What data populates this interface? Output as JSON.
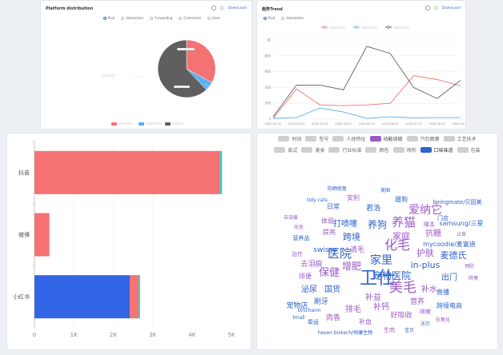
{
  "pie_panel": {
    "title": "Platform distribution",
    "download_label": "DownLoad",
    "radio_options": [
      {
        "label": "Post",
        "selected": true
      },
      {
        "label": "Interaction",
        "selected": false
      },
      {
        "label": "Forwarding",
        "selected": false
      },
      {
        "label": "Comments",
        "selected": false
      },
      {
        "label": "Likes",
        "selected": false
      }
    ],
    "colors": {
      "red": "#f47272",
      "blue": "#5ab0f0",
      "gray": "#5f5f5f"
    }
  },
  "line_panel": {
    "title": "趋势Trend",
    "download_label": "DownLoad",
    "radio_options": [
      {
        "label": "Post",
        "selected": true
      },
      {
        "label": "Interaction",
        "selected": false
      }
    ]
  },
  "chart_data": [
    {
      "type": "pie",
      "values": [
        33,
        5,
        62
      ],
      "colors": [
        "#f47272",
        "#5ab0f0",
        "#5f5f5f"
      ]
    },
    {
      "type": "line",
      "x": [
        "2020-01-01",
        "2020-02-01",
        "2020-03-01",
        "2020-04-01",
        "2020-05-01",
        "2020-06-01",
        "2020-07-01",
        "2020-08-01",
        "2020-09-01"
      ],
      "y_ticks": [
        "0",
        "200",
        "400",
        "600",
        "800",
        "1K"
      ],
      "ylim": [
        0,
        1000
      ],
      "grid": true,
      "series": [
        {
          "color": "#f47272",
          "values": [
            10,
            380,
            180,
            170,
            180,
            200,
            550,
            500,
            420
          ]
        },
        {
          "color": "#5ab0f0",
          "values": [
            10,
            20,
            140,
            90,
            10,
            30,
            15,
            20,
            20
          ]
        },
        {
          "color": "#5f5f5f",
          "values": [
            30,
            430,
            430,
            370,
            920,
            830,
            400,
            260,
            490
          ]
        }
      ]
    },
    {
      "type": "bar",
      "orientation": "horizontal",
      "categories": [
        "抖音",
        "微博",
        "小红书"
      ],
      "x_ticks": [
        "0",
        "1K",
        "2K",
        "3K",
        "4K",
        "5K"
      ],
      "xlim": [
        0,
        5000
      ],
      "series": [
        {
          "color": "#3366e6",
          "values": [
            0,
            0,
            2420
          ]
        },
        {
          "color": "#f47272",
          "values": [
            4700,
            380,
            220
          ]
        },
        {
          "color": "#3fc6c0",
          "values": [
            60,
            0,
            40
          ]
        }
      ]
    }
  ],
  "wordcloud": {
    "tags": [
      {
        "label": "时间",
        "active": false
      },
      {
        "label": "型号",
        "active": false
      },
      {
        "label": "人体特征",
        "active": false
      },
      {
        "label": "功能功效",
        "active": true,
        "color": "#9b59c6"
      },
      {
        "label": "汽包面膜",
        "active": false
      },
      {
        "label": "工艺技术",
        "active": false
      },
      {
        "label": "款式",
        "active": false
      },
      {
        "label": "美食",
        "active": false
      },
      {
        "label": "行业标准",
        "active": false
      },
      {
        "label": "颜色",
        "active": false
      },
      {
        "label": "场所",
        "active": false
      },
      {
        "label": "口味味道",
        "active": true,
        "color": "#2f62c9"
      },
      {
        "label": "包装",
        "active": false
      }
    ],
    "words": [
      {
        "text": "卫仕",
        "x": 150,
        "y": 180,
        "size": 22,
        "color": "#2f62c9"
      },
      {
        "text": "美毛",
        "x": 182,
        "y": 190,
        "size": 17,
        "color": "#9b59c6"
      },
      {
        "text": "化毛",
        "x": 175,
        "y": 137,
        "size": 16,
        "color": "#9b59c6"
      },
      {
        "text": "养猫",
        "x": 183,
        "y": 108,
        "size": 15,
        "color": "#9b59c6"
      },
      {
        "text": "爱纳它",
        "x": 210,
        "y": 92,
        "size": 14,
        "color": "#9b59c6"
      },
      {
        "text": "医院",
        "x": 103,
        "y": 147,
        "size": 15,
        "color": "#2f62c9"
      },
      {
        "text": "家里",
        "x": 155,
        "y": 155,
        "size": 14,
        "color": "#2f62c9"
      },
      {
        "text": "宠物医院",
        "x": 168,
        "y": 174,
        "size": 12,
        "color": "#2f62c9"
      },
      {
        "text": "养狗",
        "x": 150,
        "y": 110,
        "size": 12,
        "color": "#2f62c9"
      },
      {
        "text": "保健",
        "x": 90,
        "y": 170,
        "size": 13,
        "color": "#9b59c6"
      },
      {
        "text": "增肥",
        "x": 118,
        "y": 162,
        "size": 12,
        "color": "#9b59c6"
      },
      {
        "text": "麦德氏",
        "x": 245,
        "y": 148,
        "size": 11,
        "color": "#2f62c9"
      },
      {
        "text": "in-plus",
        "x": 210,
        "y": 160,
        "size": 11,
        "color": "#2f62c9"
      },
      {
        "text": "护肤",
        "x": 210,
        "y": 145,
        "size": 11,
        "color": "#9b59c6"
      },
      {
        "text": "家庭",
        "x": 180,
        "y": 124,
        "size": 11,
        "color": "#9b59c6"
      },
      {
        "text": "跨境",
        "x": 118,
        "y": 125,
        "size": 11,
        "color": "#2f62c9"
      },
      {
        "text": "打喷嚏",
        "x": 110,
        "y": 108,
        "size": 10,
        "color": "#2f62c9"
      },
      {
        "text": "补水",
        "x": 215,
        "y": 190,
        "size": 10,
        "color": "#9b59c6"
      },
      {
        "text": "抗糖",
        "x": 220,
        "y": 120,
        "size": 10,
        "color": "#9b59c6"
      },
      {
        "text": "出门",
        "x": 240,
        "y": 175,
        "size": 10,
        "color": "#2f62c9"
      },
      {
        "text": "补益",
        "x": 145,
        "y": 200,
        "size": 10,
        "color": "#9b59c6"
      },
      {
        "text": "泌尿",
        "x": 65,
        "y": 190,
        "size": 10,
        "color": "#2f62c9"
      },
      {
        "text": "国货",
        "x": 94,
        "y": 190,
        "size": 10,
        "color": "#2f62c9"
      },
      {
        "text": "刷牙",
        "x": 80,
        "y": 205,
        "size": 9,
        "color": "#2f62c9"
      },
      {
        "text": "排毛",
        "x": 120,
        "y": 215,
        "size": 10,
        "color": "#9b59c6"
      },
      {
        "text": "补钙",
        "x": 155,
        "y": 212,
        "size": 10,
        "color": "#9b59c6"
      },
      {
        "text": "好吸收",
        "x": 180,
        "y": 222,
        "size": 9,
        "color": "#9b59c6"
      },
      {
        "text": "宠物店",
        "x": 50,
        "y": 210,
        "size": 9,
        "color": "#2f62c9"
      },
      {
        "text": "肉香",
        "x": 95,
        "y": 225,
        "size": 9,
        "color": "#9b59c6"
      },
      {
        "text": "营养",
        "x": 200,
        "y": 205,
        "size": 9,
        "color": "#9b59c6"
      },
      {
        "text": "跨境电商",
        "x": 240,
        "y": 210,
        "size": 8,
        "color": "#2f62c9"
      },
      {
        "text": "mycoodie/麦富迪",
        "x": 240,
        "y": 133,
        "size": 8,
        "color": "#2f62c9"
      },
      {
        "text": "samsung/三星",
        "x": 255,
        "y": 107,
        "size": 8,
        "color": "#2f62c9"
      },
      {
        "text": "beingmate/贝因美",
        "x": 250,
        "y": 80,
        "size": 7,
        "color": "#2f62c9"
      },
      {
        "text": "swisse",
        "x": 85,
        "y": 140,
        "size": 9,
        "color": "#2f62c9"
      },
      {
        "text": "去泪痕",
        "x": 68,
        "y": 158,
        "size": 9,
        "color": "#9b59c6"
      },
      {
        "text": "清毛",
        "x": 125,
        "y": 140,
        "size": 9,
        "color": "#9b59c6"
      },
      {
        "text": "补血",
        "x": 135,
        "y": 230,
        "size": 8,
        "color": "#9b59c6"
      },
      {
        "text": "君浩",
        "x": 145,
        "y": 88,
        "size": 9,
        "color": "#2f62c9"
      },
      {
        "text": "日常",
        "x": 95,
        "y": 86,
        "size": 8,
        "color": "#2f62c9"
      },
      {
        "text": "遛狗",
        "x": 180,
        "y": 77,
        "size": 8,
        "color": "#2f62c9"
      },
      {
        "text": "安利",
        "x": 120,
        "y": 75,
        "size": 8,
        "color": "#9b59c6"
      },
      {
        "text": "tidy cats",
        "x": 75,
        "y": 77,
        "size": 6,
        "color": "#2f62c9"
      },
      {
        "text": "防晒修复",
        "x": 100,
        "y": 63,
        "size": 6,
        "color": "#2f62c9"
      },
      {
        "text": "美国",
        "x": 160,
        "y": 65,
        "size": 6,
        "color": "#2f62c9"
      },
      {
        "text": "治疗",
        "x": 50,
        "y": 145,
        "size": 7,
        "color": "#9b59c6"
      },
      {
        "text": "营养品",
        "x": 55,
        "y": 125,
        "size": 7,
        "color": "#2f62c9"
      },
      {
        "text": "排便",
        "x": 60,
        "y": 173,
        "size": 8,
        "color": "#9b59c6"
      },
      {
        "text": "去泪痕",
        "x": 42,
        "y": 99,
        "size": 6,
        "color": "#9b59c6"
      },
      {
        "text": "门店",
        "x": 232,
        "y": 100,
        "size": 7,
        "color": "#2f62c9"
      },
      {
        "text": "降本",
        "x": 215,
        "y": 108,
        "size": 7,
        "color": "#9b59c6"
      },
      {
        "text": "直播",
        "x": 232,
        "y": 193,
        "size": 8,
        "color": "#2f62c9"
      },
      {
        "text": "tmall",
        "x": 52,
        "y": 224,
        "size": 6,
        "color": "#2f62c9"
      },
      {
        "text": "牵运",
        "x": 70,
        "y": 230,
        "size": 7,
        "color": "#2f62c9"
      },
      {
        "text": "hesen biotech/恒康生物",
        "x": 110,
        "y": 243,
        "size": 6,
        "color": "#2f62c9"
      },
      {
        "text": "生肉",
        "x": 165,
        "y": 240,
        "size": 7,
        "color": "#9b59c6"
      },
      {
        "text": "佳贝",
        "x": 190,
        "y": 240,
        "size": 6,
        "color": "#2f62c9"
      },
      {
        "text": "沃尔",
        "x": 210,
        "y": 232,
        "size": 6,
        "color": "#2f62c9"
      },
      {
        "text": "咳嗽",
        "x": 210,
        "y": 217,
        "size": 7,
        "color": "#9b59c6"
      },
      {
        "text": "抗氧化",
        "x": 232,
        "y": 227,
        "size": 6,
        "color": "#9b59c6"
      },
      {
        "text": "预防",
        "x": 265,
        "y": 160,
        "size": 6,
        "color": "#9b59c6"
      },
      {
        "text": "除臭",
        "x": 270,
        "y": 175,
        "size": 6,
        "color": "#9b59c6"
      },
      {
        "text": "止痒",
        "x": 255,
        "y": 120,
        "size": 6,
        "color": "#9b59c6"
      },
      {
        "text": "Unicharm",
        "x": 65,
        "y": 215,
        "size": 6,
        "color": "#2f62c9"
      },
      {
        "text": "提亮",
        "x": 90,
        "y": 118,
        "size": 8,
        "color": "#9b59c6"
      },
      {
        "text": "体弱",
        "x": 88,
        "y": 104,
        "size": 8,
        "color": "#9b59c6"
      },
      {
        "text": "化妆",
        "x": 52,
        "y": 111,
        "size": 6,
        "color": "#9b59c6"
      }
    ]
  }
}
